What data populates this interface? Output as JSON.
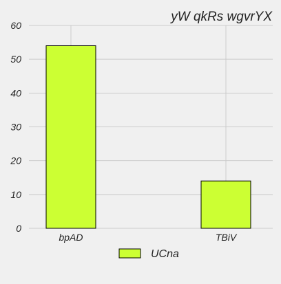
{
  "chart_data": {
    "type": "bar",
    "title": "yW qkRs wgvrYX",
    "xlabel": "",
    "ylabel": "",
    "categories": [
      "bpAD",
      "TBiV"
    ],
    "series": [
      {
        "name": "UCna",
        "values": [
          54,
          14
        ]
      }
    ],
    "ylim": [
      0,
      60
    ],
    "yticks": [
      0,
      10,
      20,
      30,
      40,
      50,
      60
    ],
    "grid": true,
    "legend_position": "bottom-center",
    "colors": {
      "background": "#f0f0f0",
      "grid": "#cbcbcb",
      "bar_fill": "#ccff33",
      "bar_stroke": "#000000",
      "text": "#222222"
    }
  }
}
